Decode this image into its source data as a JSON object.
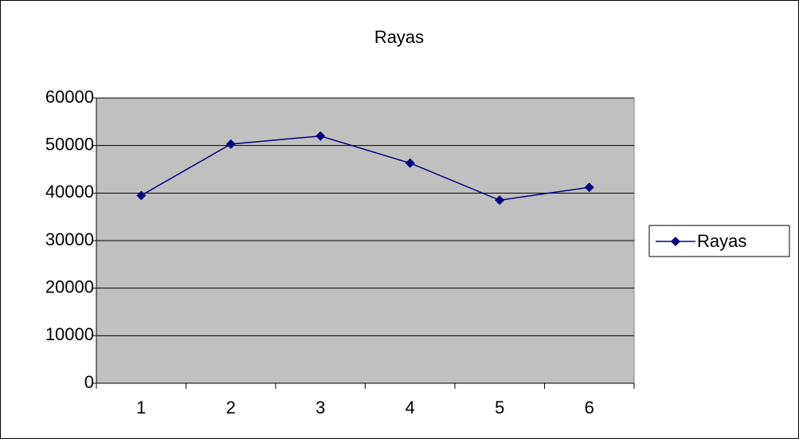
{
  "chart_data": {
    "type": "line",
    "title": "Rayas",
    "categories": [
      "1",
      "2",
      "3",
      "4",
      "5",
      "6"
    ],
    "series": [
      {
        "name": "Rayas",
        "color": "#000080",
        "values": [
          39500,
          50300,
          52000,
          46300,
          38500,
          41200
        ]
      }
    ],
    "ylim": [
      0,
      60000
    ],
    "yticks": [
      0,
      10000,
      20000,
      30000,
      40000,
      50000,
      60000
    ],
    "grid": true,
    "legend": "right",
    "plot_background": "#c0c0c0"
  }
}
